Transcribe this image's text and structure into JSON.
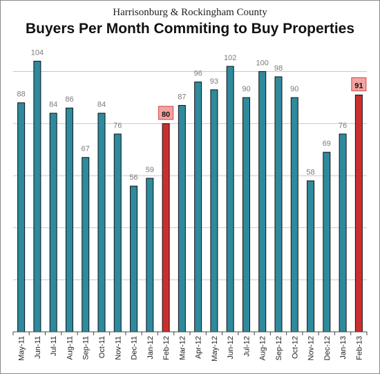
{
  "header": {
    "subtitle": "Harrisonburg & Rockingham County",
    "title": "Buyers Per Month Commiting to Buy Properties"
  },
  "colors": {
    "normal_bar": "#2e8a9c",
    "highlight_bar": "#cc2e2e",
    "highlight_label_bg": "#f4a3a3",
    "label_text": "#7a7a7a",
    "gridline": "#c8c8c8"
  },
  "chart_data": {
    "type": "bar",
    "categories": [
      "May-11",
      "Jun-11",
      "Jul-11",
      "Aug-11",
      "Sep-11",
      "Oct-11",
      "Nov-11",
      "Dec-11",
      "Jan-12",
      "Feb-12",
      "Mar-12",
      "Apr-12",
      "May-12",
      "Jun-12",
      "Jul-12",
      "Aug-12",
      "Sep-12",
      "Oct-12",
      "Nov-12",
      "Dec-12",
      "Jan-13",
      "Feb-13"
    ],
    "values": [
      88,
      104,
      84,
      86,
      67,
      84,
      76,
      56,
      59,
      80,
      87,
      96,
      93,
      102,
      90,
      100,
      98,
      90,
      58,
      69,
      76,
      91
    ],
    "highlighted": [
      "Feb-12",
      "Feb-13"
    ],
    "ylim": [
      0,
      100
    ],
    "grid": true,
    "title": "Buyers Per Month Commiting to Buy Properties",
    "subtitle": "Harrisonburg & Rockingham County"
  }
}
